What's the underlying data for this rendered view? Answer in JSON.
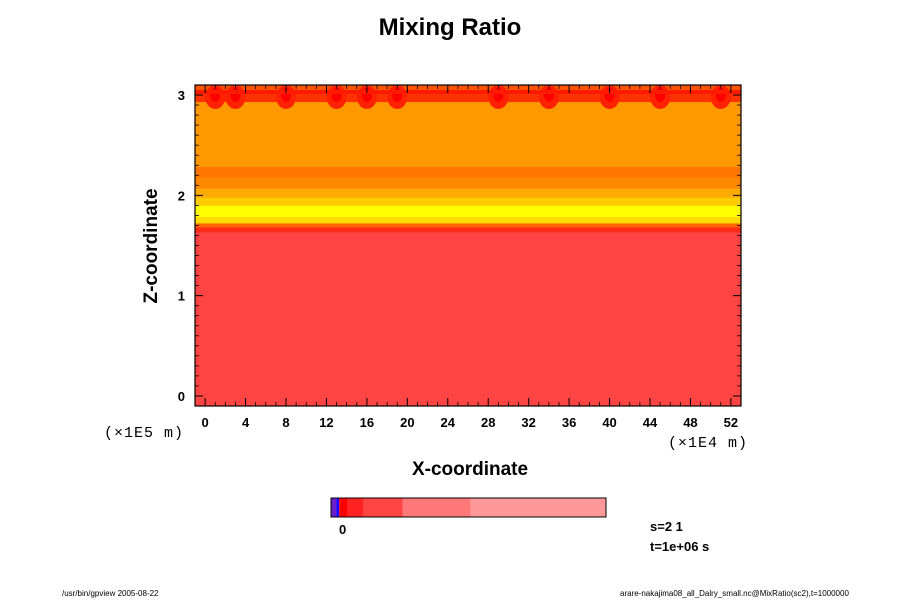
{
  "colors": {
    "background": "#ff4444",
    "levels": {
      "orange": "#ff9900",
      "dark_orange": "#ff7700",
      "red": "#ff2a1a",
      "bright_red": "#ff0000",
      "yellow": "#ffff00",
      "light_yellow": "#ffdd00"
    }
  },
  "chart_data": {
    "type": "heatmap",
    "title": "Mixing Ratio",
    "xlabel": "X-coordinate",
    "ylabel": "Z-coordinate",
    "x_unit": "(×1E4 m)",
    "y_unit": "(×1E5 m)",
    "xlim": [
      -1,
      53
    ],
    "ylim": [
      -0.1,
      3.1
    ],
    "x_ticks": [
      0,
      4,
      8,
      12,
      16,
      20,
      24,
      28,
      32,
      36,
      40,
      44,
      48,
      52
    ],
    "y_ticks": [
      0,
      1,
      2,
      3
    ],
    "bands": [
      {
        "z_from": -0.1,
        "z_to": 1.63,
        "color": "#ff4444"
      },
      {
        "z_from": 1.63,
        "z_to": 1.68,
        "color": "#ff2a1a"
      },
      {
        "z_from": 1.68,
        "z_to": 1.72,
        "color": "#ff6600"
      },
      {
        "z_from": 1.72,
        "z_to": 1.78,
        "color": "#ffdd00"
      },
      {
        "z_from": 1.78,
        "z_to": 1.9,
        "color": "#ffff00"
      },
      {
        "z_from": 1.9,
        "z_to": 1.98,
        "color": "#ffcc00"
      },
      {
        "z_from": 1.98,
        "z_to": 2.07,
        "color": "#ffaa00"
      },
      {
        "z_from": 2.07,
        "z_to": 2.18,
        "color": "#ff8800"
      },
      {
        "z_from": 2.18,
        "z_to": 2.28,
        "color": "#ff7700"
      },
      {
        "z_from": 2.28,
        "z_to": 2.93,
        "color": "#ff9900"
      },
      {
        "z_from": 2.93,
        "z_to": 3.02,
        "color": "#ff3300"
      },
      {
        "z_from": 3.02,
        "z_to": 3.1,
        "color": "#ff5500"
      }
    ],
    "top_cells_x": [
      1,
      3,
      8,
      13,
      16,
      19,
      29,
      34,
      40,
      45,
      51
    ],
    "colorbar": {
      "label": "0",
      "segments": [
        {
          "color": "#6a1ecc",
          "weight": 5
        },
        {
          "color": "#2200ff",
          "weight": 3
        },
        {
          "color": "#ff0000",
          "weight": 8
        },
        {
          "color": "#ff2222",
          "weight": 16
        },
        {
          "color": "#ff4444",
          "weight": 38
        },
        {
          "color": "#ff7777",
          "weight": 66
        },
        {
          "color": "#ff9999",
          "weight": 132
        }
      ]
    }
  },
  "info": {
    "s": "s=2 1",
    "t": "t=1e+06 s"
  },
  "footer": {
    "left": "/usr/bin/gpview 2005-08-22",
    "right": "arare-nakajima08_all_Dalry_small.nc@MixRatio(sc2),t=1000000"
  }
}
